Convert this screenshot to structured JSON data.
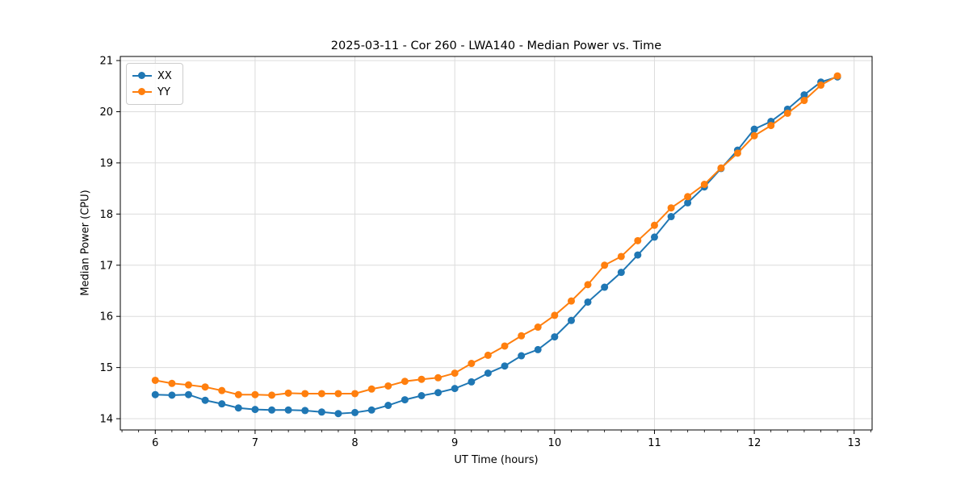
{
  "chart_data": {
    "type": "line",
    "title": "2025-03-11 - Cor 260 - LWA140 - Median Power vs. Time",
    "xlabel": "UT Time (hours)",
    "ylabel": "Median Power (CPU)",
    "xlim": [
      5.65,
      13.18
    ],
    "ylim": [
      13.78,
      21.08
    ],
    "xticks": [
      6,
      7,
      8,
      9,
      10,
      11,
      12,
      13
    ],
    "yticks": [
      14,
      15,
      16,
      17,
      18,
      19,
      20,
      21
    ],
    "x_minor_step": 0.16667,
    "grid": true,
    "grid_color": "#dcdcdc",
    "legend_position": "upper-left",
    "x": [
      6.0,
      6.167,
      6.333,
      6.5,
      6.667,
      6.833,
      7.0,
      7.167,
      7.333,
      7.5,
      7.667,
      7.833,
      8.0,
      8.167,
      8.333,
      8.5,
      8.667,
      8.833,
      9.0,
      9.167,
      9.333,
      9.5,
      9.667,
      9.833,
      10.0,
      10.167,
      10.333,
      10.5,
      10.667,
      10.833,
      11.0,
      11.167,
      11.333,
      11.5,
      11.667,
      11.833,
      12.0,
      12.167,
      12.333,
      12.5,
      12.667,
      12.833
    ],
    "series": [
      {
        "name": "XX",
        "color": "#1f77b4",
        "values": [
          14.47,
          14.46,
          14.47,
          14.36,
          14.29,
          14.21,
          14.18,
          14.17,
          14.17,
          14.16,
          14.13,
          14.1,
          14.12,
          14.17,
          14.26,
          14.37,
          14.45,
          14.51,
          14.59,
          14.72,
          14.89,
          15.03,
          15.23,
          15.35,
          15.6,
          15.92,
          16.28,
          16.57,
          16.86,
          17.2,
          17.55,
          17.95,
          18.22,
          18.53,
          18.89,
          19.25,
          19.66,
          19.81,
          20.05,
          20.33,
          20.58,
          20.68
        ]
      },
      {
        "name": "YY",
        "color": "#ff7f0e",
        "values": [
          14.75,
          14.69,
          14.66,
          14.62,
          14.55,
          14.47,
          14.47,
          14.46,
          14.5,
          14.49,
          14.49,
          14.49,
          14.49,
          14.58,
          14.64,
          14.73,
          14.77,
          14.8,
          14.89,
          15.08,
          15.24,
          15.42,
          15.62,
          15.79,
          16.02,
          16.3,
          16.62,
          17.0,
          17.17,
          17.48,
          17.78,
          18.12,
          18.34,
          18.58,
          18.9,
          19.19,
          19.53,
          19.73,
          19.97,
          20.22,
          20.52,
          20.7
        ]
      }
    ]
  }
}
